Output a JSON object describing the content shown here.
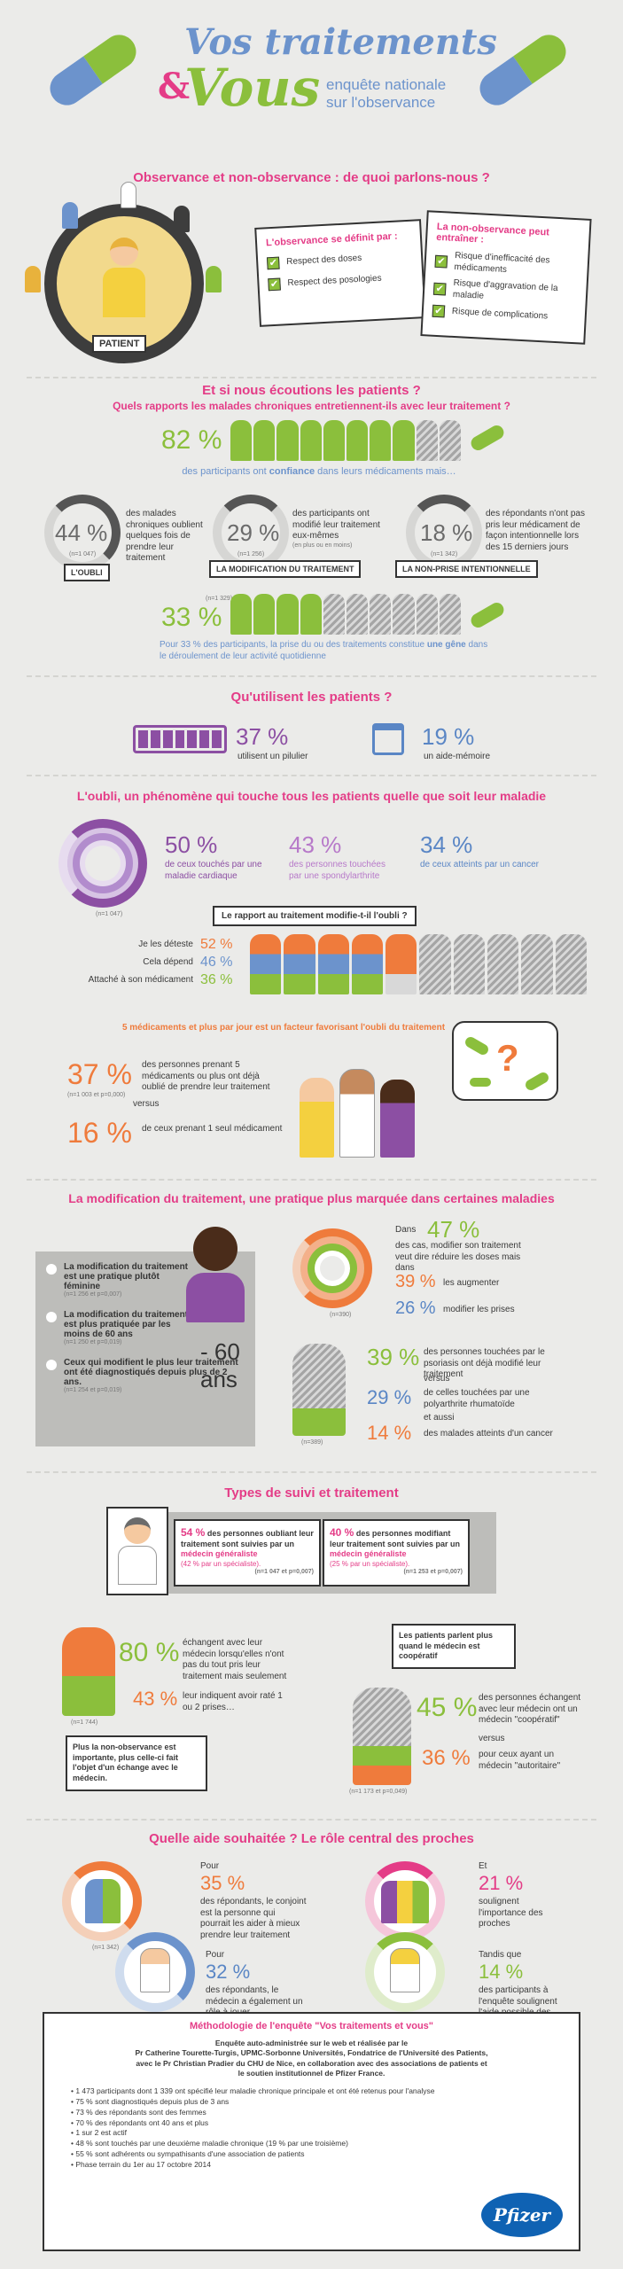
{
  "header": {
    "title_line1": "Vos traitements",
    "amp": "&",
    "title_line2": "Vous",
    "subtitle_line1": "enquête nationale",
    "subtitle_line2": "sur l'observance"
  },
  "s1": {
    "title": "Observance et non-observance : de quoi parlons-nous ?",
    "patient": "PATIENT",
    "obs_title": "L'observance se définit par :",
    "obs_items": [
      "Respect des doses",
      "Respect des posologies"
    ],
    "nonobs_title": "La non-observance peut entraîner :",
    "nonobs_items": [
      "Risque d'inefficacité des médicaments",
      "Risque d'aggravation de la maladie",
      "Risque de complications"
    ]
  },
  "s2": {
    "title1": "Et si nous écoutions les patients ?",
    "title2": "Quels rapports les malades chroniques entretiennent-ils avec leur traitement ?",
    "confiance_pct": "82 %",
    "confiance_text_a": "des participants ont ",
    "confiance_text_b": "confiance",
    "confiance_text_c": " dans leurs médicaments mais…",
    "oubli_pct": "44 %",
    "oubli_text": "des malades chroniques oublient quelques fois de prendre leur traitement",
    "oubli_n": "(n=1 047)",
    "oubli_label": "L'OUBLI",
    "modif_pct": "29 %",
    "modif_text": "des participants ont modifié leur traitement eux-mêmes",
    "modif_sub": "(en plus ou en moins)",
    "modif_n": "(n=1 256)",
    "modif_label": "LA MODIFICATION DU TRAITEMENT",
    "nonprise_pct": "18 %",
    "nonprise_text": "des répondants n'ont pas pris leur médicament de façon intentionnelle lors des 15 derniers jours",
    "nonprise_n": "(n=1 342)",
    "nonprise_label": "LA NON-PRISE INTENTIONNELLE",
    "gene_pct": "33 %",
    "gene_text_a": "Pour 33 % des participants, la prise du ou des traitements constitue ",
    "gene_text_b": "une gêne",
    "gene_text_c": " dans le déroulement de leur activité quotidienne",
    "gene_n": "(n=1 329)"
  },
  "s3": {
    "title": "Qu'utilisent les patients ?",
    "pilulier_pct": "37 %",
    "pilulier_text": "utilisent un pilulier",
    "memo_pct": "19 %",
    "memo_text": "un aide-mémoire"
  },
  "s4": {
    "title": "L'oubli, un phénomène qui touche tous les patients quelle que soit leur maladie",
    "donut_n": "(n=1 047)",
    "cardiaque_pct": "50 %",
    "cardiaque_text": "de ceux touchés par une maladie cardiaque",
    "spondy_pct": "43 %",
    "spondy_text": "des personnes touchées par une spondylarthrite",
    "cancer_pct": "34 %",
    "cancer_text": "de ceux atteints par un cancer",
    "rapport_title": "Le rapport au traitement modifie-t-il l'oubli ?",
    "rapport_rows": [
      {
        "label": "Je les déteste",
        "pct": "52 %"
      },
      {
        "label": "Cela dépend",
        "pct": "46 %"
      },
      {
        "label": "Attaché à son médicament",
        "pct": "36 %"
      }
    ],
    "five_title": "5 médicaments et plus par jour est un facteur favorisant l'oubli du traitement",
    "five_pct": "37 %",
    "five_text": "des personnes prenant 5 médicaments ou plus ont déjà oublié de prendre leur traitement",
    "five_n": "(n=1 003 et p=0,000)",
    "versus": "versus",
    "one_pct": "16 %",
    "one_text": "de ceux prenant 1 seul médicament"
  },
  "s5": {
    "title": "La modification du traitement, une pratique plus marquée dans certaines maladies",
    "bullets": [
      {
        "text": "La modification du traitement est une pratique plutôt féminine",
        "n": "(n=1 256 et p=0,007)"
      },
      {
        "text": "La modification du traitement est plus pratiquée par les moins de 60 ans",
        "n": "(n=1 250 et p=0,019)"
      },
      {
        "text": "Ceux qui modifient le plus leur traitement ont été diagnostiqués depuis plus de 2 ans.",
        "n": "(n=1 254 et p=0,019)"
      }
    ],
    "age": "- 60 ans",
    "dans_label": "Dans",
    "reduire_pct": "47 %",
    "reduire_text": "des cas, modifier son traitement veut dire réduire les doses mais dans",
    "augmenter_pct": "39 %",
    "augmenter_text": "les augmenter",
    "prises_pct": "26 %",
    "prises_text": "modifier les prises",
    "donut_n": "(n=390)",
    "psoriasis_pct": "39 %",
    "psoriasis_text": "des personnes touchées par le psoriasis ont déjà modifié leur traitement",
    "versus": "versus",
    "rhuma_pct": "29 %",
    "rhuma_text": "de celles touchées par une polyarthrite rhumatoïde",
    "et_aussi": "et aussi",
    "cancer_pct": "14 %",
    "cancer_text": "des malades atteints d'un cancer",
    "person_n": "(n=389)"
  },
  "s6": {
    "title": "Types de suivi et traitement",
    "left_pct": "54 %",
    "left_text_a": " des personnes oubliant leur traitement sont suivies par un ",
    "left_text_b": "médecin généraliste",
    "left_sub": "(42 % par un spécialiste).",
    "left_n": "(n=1 047 et p=0,007)",
    "right_pct": "40 %",
    "right_text_a": " des personnes modifiant leur traitement sont suivies par un ",
    "right_text_b": "médecin généraliste",
    "right_sub": "(25 % par un spécialiste).",
    "right_n": "(n=1 253 et p=0,007)",
    "echange_pct": "80 %",
    "echange_text": "échangent avec leur médecin lorsqu'elles n'ont pas du tout pris leur traitement mais seulement",
    "raté_pct": "43 %",
    "raté_text": "leur indiquent avoir raté 1 ou 2 prises…",
    "person_n": "(n=1 744)",
    "note_left": "Plus la non-observance est importante, plus celle-ci fait l'objet d'un échange avec le médecin.",
    "note_right": "Les patients parlent plus quand le médecin est coopératif",
    "coop_pct": "45 %",
    "coop_text": "des personnes échangent avec leur médecin ont un médecin \"coopératif\"",
    "versus": "versus",
    "auto_pct": "36 %",
    "auto_text": "pour ceux ayant un médecin \"autoritaire\"",
    "person2_n": "(n=1 173 et p=0,049)"
  },
  "s7": {
    "title": "Quelle aide souhaitée ? Le rôle central des proches",
    "conjoint_lead": "Pour",
    "conjoint_pct": "35 %",
    "conjoint_text": "des répondants, le conjoint est la personne qui pourrait les aider à mieux prendre leur traitement",
    "conjoint_n": "(n=1 342)",
    "proches_lead": "Et",
    "proches_pct": "21 %",
    "proches_text": "soulignent l'importance des proches",
    "medecin_lead": "Pour",
    "medecin_pct": "32 %",
    "medecin_text": "des répondants, le médecin a également un rôle à jouer",
    "pharma_lead": "Tandis que",
    "pharma_pct": "14 %",
    "pharma_text": "des participants à l'enquête soulignent l'aide possible des pharmaciens"
  },
  "methodo": {
    "title": "Méthodologie de l'enquête \"Vos traitements et vous\"",
    "intro": [
      "Enquête auto-administrée sur le web et réalisée par le",
      "Pr Catherine Tourette-Turgis, UPMC-Sorbonne Universités, Fondatrice de l'Université des Patients,",
      "avec le Pr Christian Pradier du CHU de Nice, en collaboration avec des associations de patients et",
      "le soutien institutionnel de Pfizer France."
    ],
    "items": [
      "1 473 participants dont 1 339 ont spécifié leur maladie chronique principale et ont été retenus pour l'analyse",
      "75 % sont diagnostiqués depuis plus de 3 ans",
      "73 % des répondants sont des femmes",
      "70 % des répondants ont 40 ans et plus",
      "1 sur 2 est actif",
      "48 % sont touchés par une deuxième maladie chronique (19 % par une troisième)",
      "55 % sont adhérents ou sympathisants d'une association de patients",
      "Phase terrain du 1er au 17 octobre 2014"
    ],
    "logo": "Pfizer"
  },
  "colors": {
    "pink": "#e43c87",
    "green": "#8bbf3c",
    "blue": "#6c93cc",
    "orange": "#ef7b3c",
    "purple": "#8c4fa3"
  }
}
